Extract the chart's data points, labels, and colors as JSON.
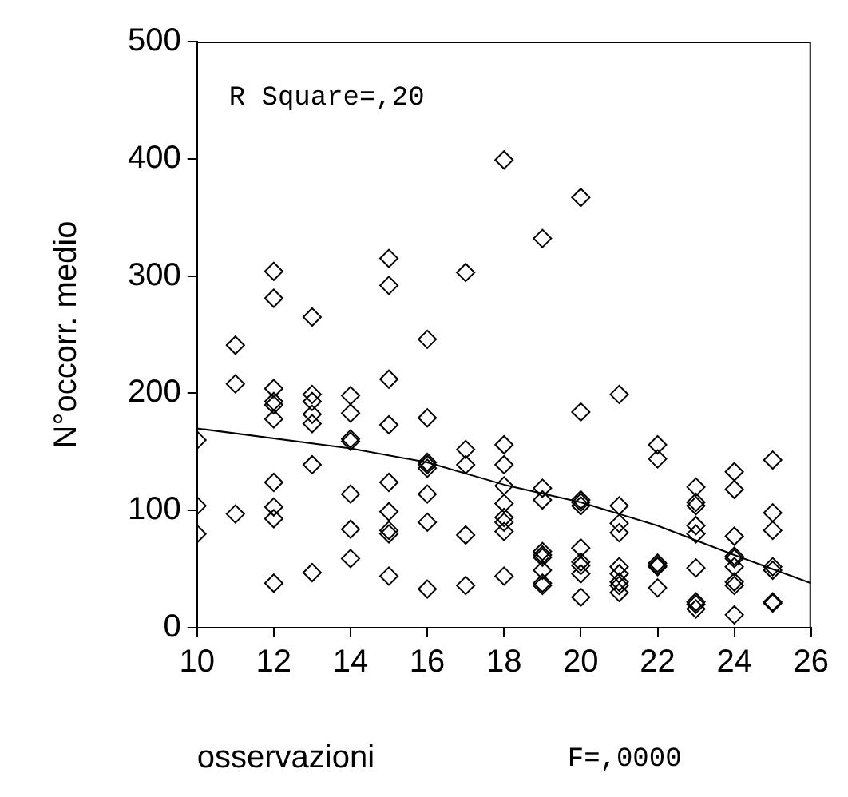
{
  "chart_data": {
    "type": "scatter",
    "xlabel": "osservazioni",
    "ylabel": "N°occorr. medio",
    "annotations": [
      "R Square=,20",
      "F=,0000"
    ],
    "xlim": [
      10,
      26
    ],
    "xticks": [
      10,
      12,
      14,
      16,
      18,
      20,
      22,
      24,
      26
    ],
    "ylim": [
      0,
      500
    ],
    "yticks": [
      0,
      100,
      200,
      300,
      400,
      500
    ],
    "grid": false,
    "legend": false,
    "marker": "diamond",
    "series": [
      {
        "color": "#000000",
        "x": [
          10,
          10,
          10,
          11,
          11,
          11,
          12,
          12,
          12,
          12,
          12,
          12,
          12,
          12,
          12,
          12,
          13,
          13,
          13,
          13,
          13,
          13,
          13,
          14,
          14,
          14,
          14,
          14,
          14,
          14,
          15,
          15,
          15,
          15,
          15,
          15,
          15,
          15,
          15,
          16,
          16,
          16,
          16,
          16,
          16,
          16,
          16,
          17,
          17,
          17,
          17,
          17,
          18,
          18,
          18,
          18,
          18,
          18,
          18,
          18,
          18,
          19,
          19,
          19,
          19,
          19,
          19,
          19,
          19,
          19,
          20,
          20,
          20,
          20,
          20,
          20,
          20,
          20,
          20,
          20,
          21,
          21,
          21,
          21,
          21,
          21,
          21,
          21,
          21,
          22,
          22,
          22,
          22,
          22,
          22,
          23,
          23,
          23,
          23,
          23,
          23,
          23,
          23,
          23,
          24,
          24,
          24,
          24,
          24,
          24,
          24,
          24,
          24,
          25,
          25,
          25,
          25,
          25,
          25,
          25
        ],
        "values": [
          160,
          104,
          80,
          241,
          208,
          97,
          304,
          281,
          204,
          193,
          190,
          178,
          124,
          103,
          93,
          38,
          265,
          199,
          193,
          182,
          174,
          139,
          47,
          198,
          183,
          161,
          159,
          114,
          84,
          59,
          315,
          292,
          212,
          173,
          124,
          99,
          83,
          80,
          44,
          246,
          179,
          141,
          139,
          136,
          114,
          90,
          33,
          303,
          152,
          139,
          79,
          36,
          399,
          156,
          139,
          121,
          106,
          94,
          90,
          82,
          44,
          332,
          119,
          109,
          65,
          62,
          60,
          49,
          38,
          36,
          367,
          184,
          109,
          107,
          104,
          68,
          56,
          53,
          46,
          26,
          199,
          104,
          89,
          81,
          52,
          46,
          39,
          36,
          30,
          156,
          144,
          55,
          53,
          52,
          34,
          120,
          107,
          104,
          87,
          80,
          51,
          22,
          20,
          16,
          133,
          118,
          78,
          61,
          59,
          52,
          39,
          36,
          11,
          143,
          98,
          83,
          52,
          49,
          22,
          21
        ]
      },
      {
        "type": "line",
        "color": "#000000",
        "marker": "none",
        "x": [
          10,
          14,
          16,
          18,
          20,
          22,
          24,
          26
        ],
        "values": [
          170,
          153,
          141,
          122,
          107,
          87,
          62,
          38
        ]
      }
    ]
  }
}
